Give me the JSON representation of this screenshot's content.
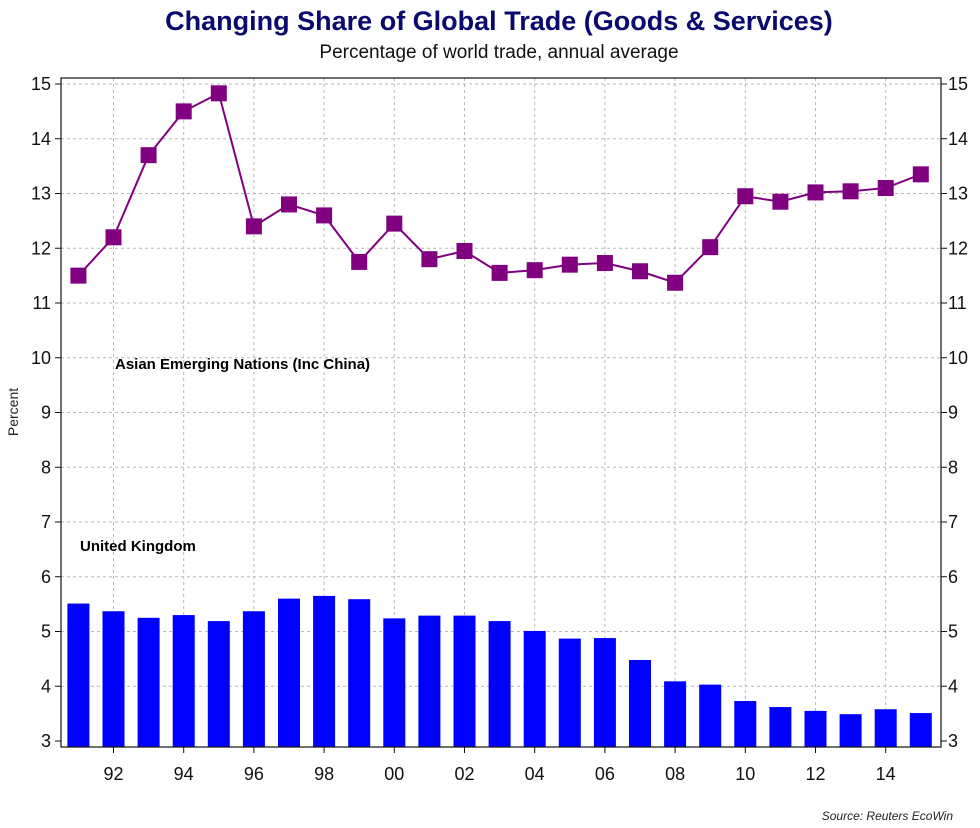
{
  "chart_data": {
    "type": "bar+line",
    "title": "Changing Share of Global Trade (Goods & Services)",
    "subtitle": "Percentage of world trade, annual average",
    "ylabel": "Percent",
    "source": "Source: Reuters EcoWin",
    "ylim": [
      3,
      15
    ],
    "yticks": [
      3,
      4,
      5,
      6,
      7,
      8,
      9,
      10,
      11,
      12,
      13,
      14,
      15
    ],
    "x": [
      1991,
      1992,
      1993,
      1994,
      1995,
      1996,
      1997,
      1998,
      1999,
      2000,
      2001,
      2002,
      2003,
      2004,
      2005,
      2006,
      2007,
      2008,
      2009,
      2010,
      2011,
      2012,
      2013,
      2014,
      2015
    ],
    "xtick_labels": [
      "92",
      "94",
      "96",
      "98",
      "00",
      "02",
      "04",
      "06",
      "08",
      "10",
      "12",
      "14"
    ],
    "grid": true,
    "series": [
      {
        "name": "Asian Emerging Nations (Inc China)",
        "type": "line",
        "marker": "square",
        "color": "#800080",
        "values": [
          11.5,
          12.2,
          13.7,
          14.5,
          14.83,
          12.4,
          12.8,
          12.6,
          11.75,
          12.45,
          11.8,
          11.95,
          11.55,
          11.6,
          11.7,
          11.73,
          11.58,
          11.37,
          12.02,
          12.95,
          12.85,
          13.02,
          13.04,
          13.1,
          13.35
        ]
      },
      {
        "name": "United Kingdom",
        "type": "bar",
        "color": "#0000ff",
        "values": [
          5.51,
          5.37,
          5.25,
          5.3,
          5.19,
          5.37,
          5.6,
          5.65,
          5.59,
          5.24,
          5.29,
          5.29,
          5.19,
          5.01,
          4.87,
          4.88,
          4.48,
          4.09,
          4.03,
          3.73,
          3.62,
          3.55,
          3.49,
          3.58,
          3.51
        ]
      }
    ]
  }
}
